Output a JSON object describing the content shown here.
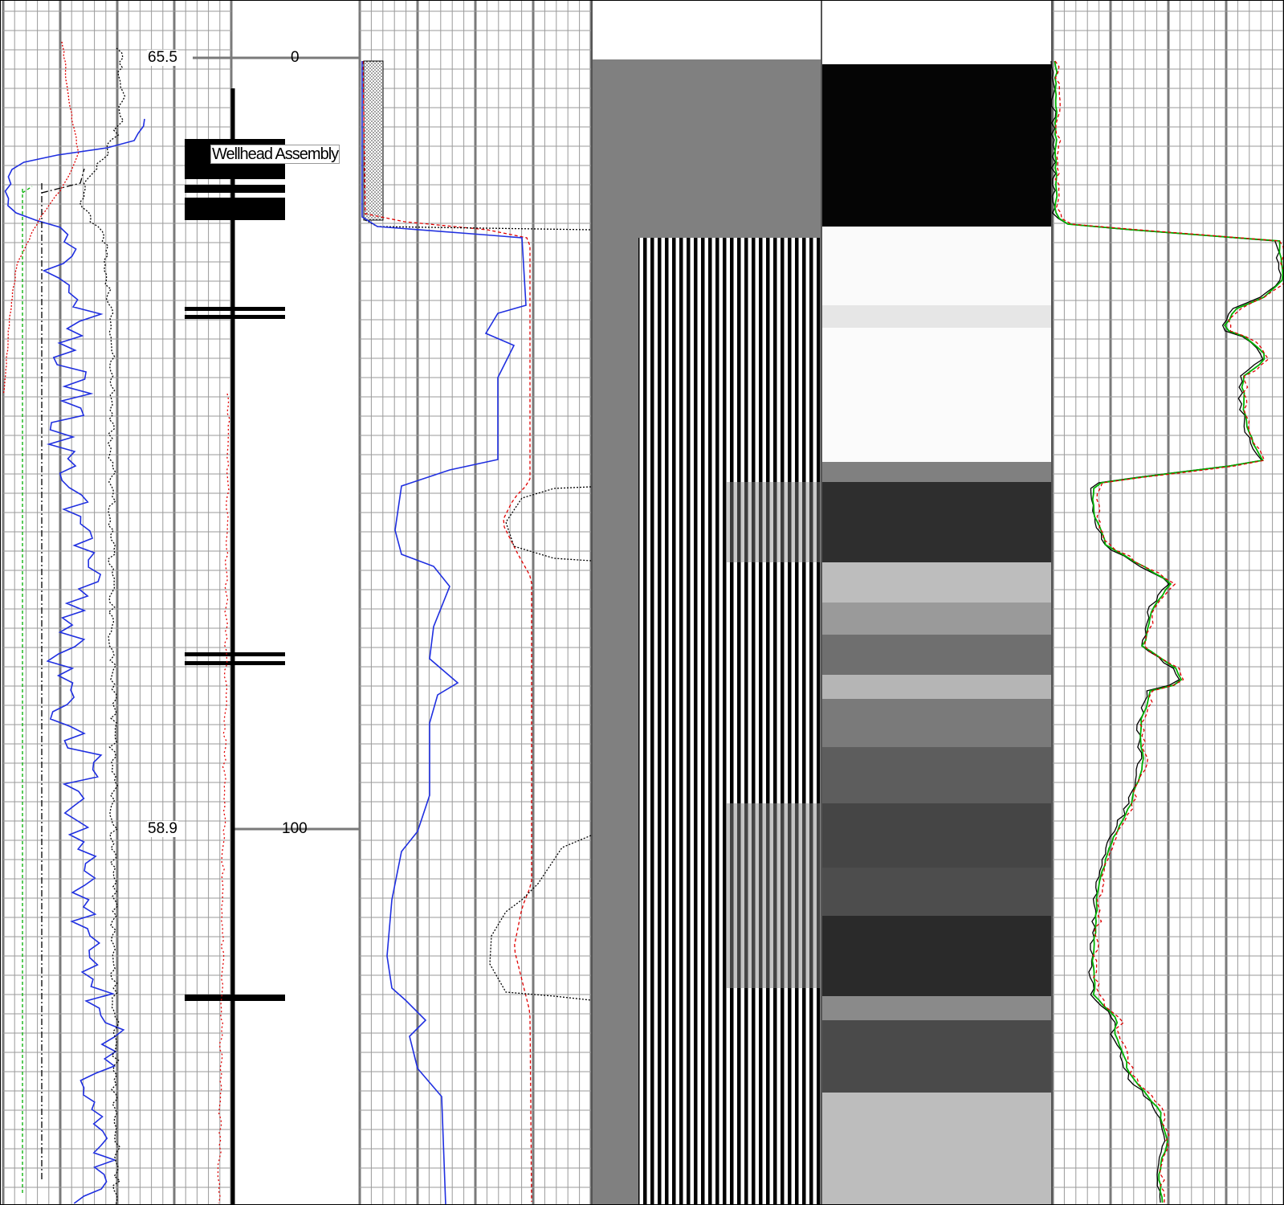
{
  "depth_labels": [
    "0",
    "100"
  ],
  "casing_labels": [
    "65.5",
    "58.9"
  ],
  "annotations": {
    "wellhead": "Wellhead Assembly"
  },
  "tracks": [
    {
      "id": "track-1",
      "curves": [
        "blue-solid",
        "black-dash-dot",
        "black-dotted",
        "red-dotted",
        "green-dashed"
      ]
    },
    {
      "id": "track-depth",
      "content": "casing-schematic"
    },
    {
      "id": "track-2",
      "curves": [
        "blue-solid",
        "red-dashed",
        "black-dotted"
      ]
    },
    {
      "id": "track-3",
      "content": "vdl-waveform"
    },
    {
      "id": "track-4",
      "content": "amplitude-image"
    },
    {
      "id": "track-5",
      "curves": [
        "black-solid",
        "green-solid",
        "red-dashed"
      ]
    }
  ],
  "colors": {
    "grid_minor": "#9a9a9a",
    "grid_major": "#7a7a7a",
    "curve_blue": "#1f2fe0",
    "curve_red": "#e00000",
    "curve_green": "#00b000",
    "curve_black": "#000000",
    "image_gray": "#808080"
  }
}
